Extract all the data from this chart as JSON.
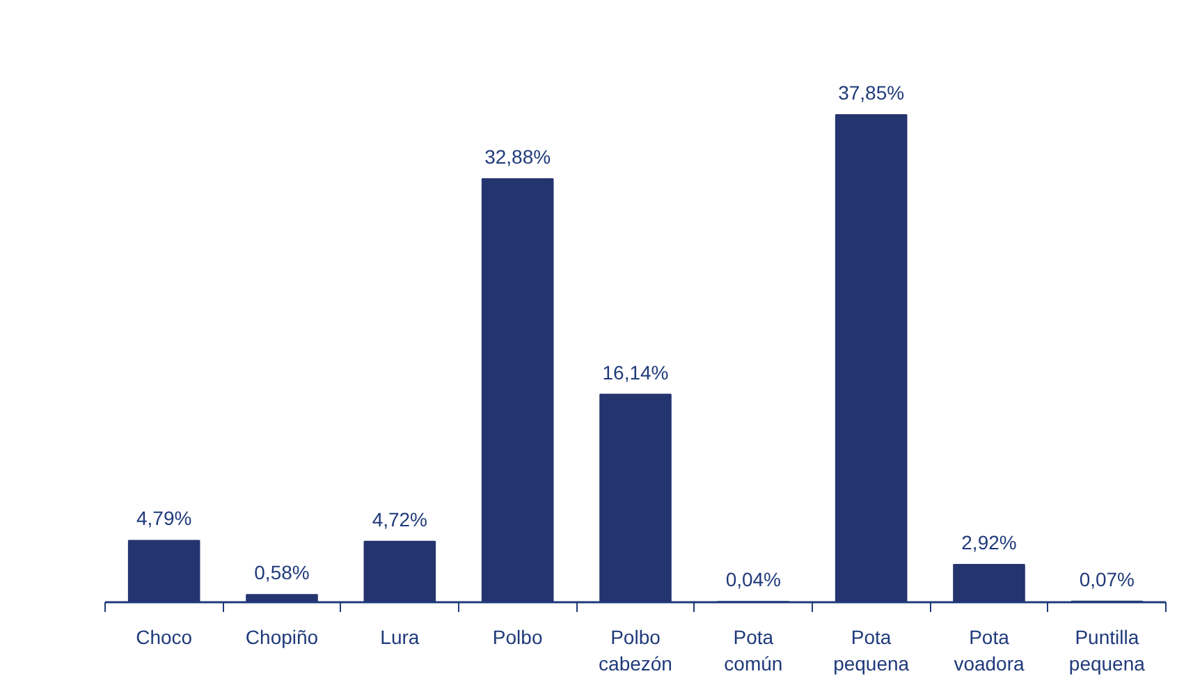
{
  "chart_data": {
    "type": "bar",
    "categories": [
      "Choco",
      "Chopiño",
      "Lura",
      "Polbo",
      "Polbo cabezón",
      "Pota común",
      "Pota pequena",
      "Pota voadora",
      "Puntilla pequena"
    ],
    "values": [
      4.79,
      0.58,
      4.72,
      32.88,
      16.14,
      0.04,
      37.85,
      2.92,
      0.07
    ],
    "value_labels": [
      "4,79%",
      "0,58%",
      "4,72%",
      "32,88%",
      "16,14%",
      "0,04%",
      "37,85%",
      "2,92%",
      "0,07%"
    ],
    "color": "#24346f"
  }
}
